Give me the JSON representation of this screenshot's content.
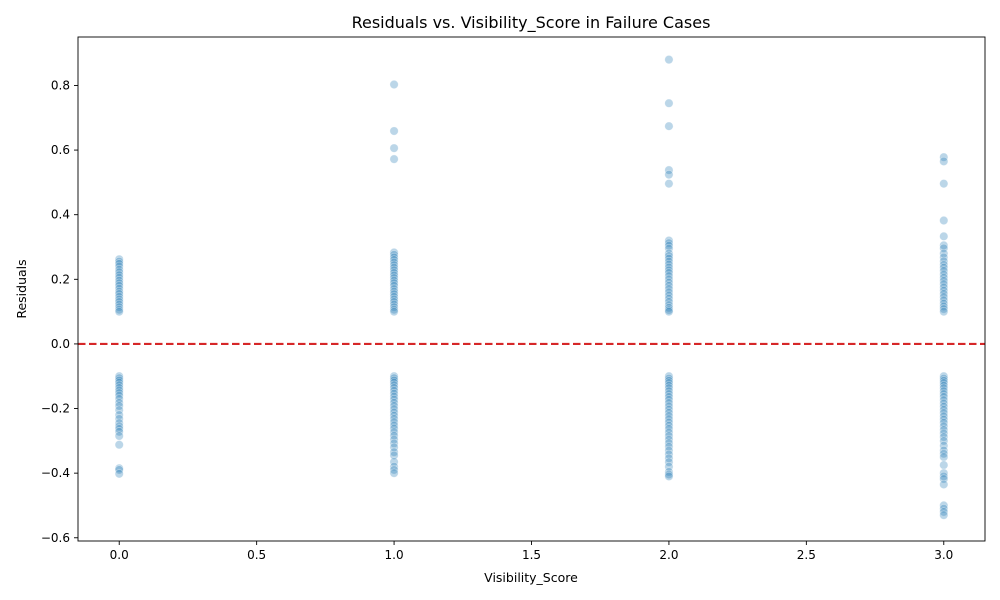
{
  "chart_data": {
    "type": "scatter",
    "title": "Residuals vs. Visibility_Score in Failure Cases",
    "xlabel": "Visibility_Score",
    "ylabel": "Residuals",
    "xlim": [
      -0.15,
      3.15
    ],
    "ylim": [
      -0.61,
      0.95
    ],
    "x_ticks": [
      0.0,
      0.5,
      1.0,
      1.5,
      2.0,
      2.5,
      3.0
    ],
    "x_tick_labels": [
      "0.0",
      "0.5",
      "1.0",
      "1.5",
      "2.0",
      "2.5",
      "3.0"
    ],
    "y_ticks": [
      -0.6,
      -0.4,
      -0.2,
      0.0,
      0.2,
      0.4,
      0.6,
      0.8
    ],
    "y_tick_labels": [
      "−0.6",
      "−0.4",
      "−0.2",
      "0.0",
      "0.2",
      "0.4",
      "0.6",
      "0.8"
    ],
    "grid": false,
    "point_color": "#1f77b4",
    "point_alpha": 0.3,
    "reference_line": {
      "y": 0.0,
      "color": "#d62728",
      "style": "dashed"
    },
    "points": [
      {
        "x": 0,
        "y": 0.262
      },
      {
        "x": 0,
        "y": 0.255
      },
      {
        "x": 0,
        "y": 0.248
      },
      {
        "x": 0,
        "y": 0.24
      },
      {
        "x": 0,
        "y": 0.23
      },
      {
        "x": 0,
        "y": 0.222
      },
      {
        "x": 0,
        "y": 0.213
      },
      {
        "x": 0,
        "y": 0.205
      },
      {
        "x": 0,
        "y": 0.196
      },
      {
        "x": 0,
        "y": 0.188
      },
      {
        "x": 0,
        "y": 0.18
      },
      {
        "x": 0,
        "y": 0.171
      },
      {
        "x": 0,
        "y": 0.162
      },
      {
        "x": 0,
        "y": 0.155
      },
      {
        "x": 0,
        "y": 0.146
      },
      {
        "x": 0,
        "y": 0.138
      },
      {
        "x": 0,
        "y": 0.13
      },
      {
        "x": 0,
        "y": 0.122
      },
      {
        "x": 0,
        "y": 0.114
      },
      {
        "x": 0,
        "y": 0.106
      },
      {
        "x": 0,
        "y": 0.1
      },
      {
        "x": 0,
        "y": -0.1
      },
      {
        "x": 0,
        "y": -0.106
      },
      {
        "x": 0,
        "y": -0.113
      },
      {
        "x": 0,
        "y": -0.12
      },
      {
        "x": 0,
        "y": -0.128
      },
      {
        "x": 0,
        "y": -0.136
      },
      {
        "x": 0,
        "y": -0.144
      },
      {
        "x": 0,
        "y": -0.152
      },
      {
        "x": 0,
        "y": -0.16
      },
      {
        "x": 0,
        "y": -0.17
      },
      {
        "x": 0,
        "y": -0.182
      },
      {
        "x": 0,
        "y": -0.192
      },
      {
        "x": 0,
        "y": -0.205
      },
      {
        "x": 0,
        "y": -0.22
      },
      {
        "x": 0,
        "y": -0.232
      },
      {
        "x": 0,
        "y": -0.245
      },
      {
        "x": 0,
        "y": -0.255
      },
      {
        "x": 0,
        "y": -0.263
      },
      {
        "x": 0,
        "y": -0.272
      },
      {
        "x": 0,
        "y": -0.285
      },
      {
        "x": 0,
        "y": -0.312
      },
      {
        "x": 0,
        "y": -0.385
      },
      {
        "x": 0,
        "y": -0.39
      },
      {
        "x": 0,
        "y": -0.402
      },
      {
        "x": 1,
        "y": 0.803
      },
      {
        "x": 1,
        "y": 0.659
      },
      {
        "x": 1,
        "y": 0.606
      },
      {
        "x": 1,
        "y": 0.572
      },
      {
        "x": 1,
        "y": 0.283
      },
      {
        "x": 1,
        "y": 0.276
      },
      {
        "x": 1,
        "y": 0.268
      },
      {
        "x": 1,
        "y": 0.26
      },
      {
        "x": 1,
        "y": 0.252
      },
      {
        "x": 1,
        "y": 0.244
      },
      {
        "x": 1,
        "y": 0.236
      },
      {
        "x": 1,
        "y": 0.228
      },
      {
        "x": 1,
        "y": 0.22
      },
      {
        "x": 1,
        "y": 0.212
      },
      {
        "x": 1,
        "y": 0.204
      },
      {
        "x": 1,
        "y": 0.196
      },
      {
        "x": 1,
        "y": 0.188
      },
      {
        "x": 1,
        "y": 0.18
      },
      {
        "x": 1,
        "y": 0.17
      },
      {
        "x": 1,
        "y": 0.162
      },
      {
        "x": 1,
        "y": 0.154
      },
      {
        "x": 1,
        "y": 0.146
      },
      {
        "x": 1,
        "y": 0.138
      },
      {
        "x": 1,
        "y": 0.13
      },
      {
        "x": 1,
        "y": 0.122
      },
      {
        "x": 1,
        "y": 0.114
      },
      {
        "x": 1,
        "y": 0.106
      },
      {
        "x": 1,
        "y": 0.1
      },
      {
        "x": 1,
        "y": -0.1
      },
      {
        "x": 1,
        "y": -0.106
      },
      {
        "x": 1,
        "y": -0.113
      },
      {
        "x": 1,
        "y": -0.12
      },
      {
        "x": 1,
        "y": -0.128
      },
      {
        "x": 1,
        "y": -0.136
      },
      {
        "x": 1,
        "y": -0.145
      },
      {
        "x": 1,
        "y": -0.154
      },
      {
        "x": 1,
        "y": -0.163
      },
      {
        "x": 1,
        "y": -0.172
      },
      {
        "x": 1,
        "y": -0.182
      },
      {
        "x": 1,
        "y": -0.192
      },
      {
        "x": 1,
        "y": -0.202
      },
      {
        "x": 1,
        "y": -0.212
      },
      {
        "x": 1,
        "y": -0.222
      },
      {
        "x": 1,
        "y": -0.232
      },
      {
        "x": 1,
        "y": -0.242
      },
      {
        "x": 1,
        "y": -0.252
      },
      {
        "x": 1,
        "y": -0.262
      },
      {
        "x": 1,
        "y": -0.273
      },
      {
        "x": 1,
        "y": -0.284
      },
      {
        "x": 1,
        "y": -0.296
      },
      {
        "x": 1,
        "y": -0.308
      },
      {
        "x": 1,
        "y": -0.32
      },
      {
        "x": 1,
        "y": -0.335
      },
      {
        "x": 1,
        "y": -0.345
      },
      {
        "x": 1,
        "y": -0.365
      },
      {
        "x": 1,
        "y": -0.38
      },
      {
        "x": 1,
        "y": -0.39
      },
      {
        "x": 1,
        "y": -0.4
      },
      {
        "x": 2,
        "y": 0.88
      },
      {
        "x": 2,
        "y": 0.745
      },
      {
        "x": 2,
        "y": 0.674
      },
      {
        "x": 2,
        "y": 0.538
      },
      {
        "x": 2,
        "y": 0.524
      },
      {
        "x": 2,
        "y": 0.496
      },
      {
        "x": 2,
        "y": 0.32
      },
      {
        "x": 2,
        "y": 0.312
      },
      {
        "x": 2,
        "y": 0.304
      },
      {
        "x": 2,
        "y": 0.295
      },
      {
        "x": 2,
        "y": 0.28
      },
      {
        "x": 2,
        "y": 0.272
      },
      {
        "x": 2,
        "y": 0.264
      },
      {
        "x": 2,
        "y": 0.255
      },
      {
        "x": 2,
        "y": 0.246
      },
      {
        "x": 2,
        "y": 0.237
      },
      {
        "x": 2,
        "y": 0.228
      },
      {
        "x": 2,
        "y": 0.22
      },
      {
        "x": 2,
        "y": 0.21
      },
      {
        "x": 2,
        "y": 0.2
      },
      {
        "x": 2,
        "y": 0.19
      },
      {
        "x": 2,
        "y": 0.18
      },
      {
        "x": 2,
        "y": 0.17
      },
      {
        "x": 2,
        "y": 0.16
      },
      {
        "x": 2,
        "y": 0.15
      },
      {
        "x": 2,
        "y": 0.14
      },
      {
        "x": 2,
        "y": 0.13
      },
      {
        "x": 2,
        "y": 0.12
      },
      {
        "x": 2,
        "y": 0.112
      },
      {
        "x": 2,
        "y": 0.105
      },
      {
        "x": 2,
        "y": 0.1
      },
      {
        "x": 2,
        "y": -0.1
      },
      {
        "x": 2,
        "y": -0.107
      },
      {
        "x": 2,
        "y": -0.114
      },
      {
        "x": 2,
        "y": -0.121
      },
      {
        "x": 2,
        "y": -0.129
      },
      {
        "x": 2,
        "y": -0.137
      },
      {
        "x": 2,
        "y": -0.146
      },
      {
        "x": 2,
        "y": -0.155
      },
      {
        "x": 2,
        "y": -0.164
      },
      {
        "x": 2,
        "y": -0.173
      },
      {
        "x": 2,
        "y": -0.183
      },
      {
        "x": 2,
        "y": -0.193
      },
      {
        "x": 2,
        "y": -0.203
      },
      {
        "x": 2,
        "y": -0.213
      },
      {
        "x": 2,
        "y": -0.223
      },
      {
        "x": 2,
        "y": -0.233
      },
      {
        "x": 2,
        "y": -0.243
      },
      {
        "x": 2,
        "y": -0.253
      },
      {
        "x": 2,
        "y": -0.263
      },
      {
        "x": 2,
        "y": -0.274
      },
      {
        "x": 2,
        "y": -0.285
      },
      {
        "x": 2,
        "y": -0.296
      },
      {
        "x": 2,
        "y": -0.307
      },
      {
        "x": 2,
        "y": -0.318
      },
      {
        "x": 2,
        "y": -0.33
      },
      {
        "x": 2,
        "y": -0.342
      },
      {
        "x": 2,
        "y": -0.354
      },
      {
        "x": 2,
        "y": -0.366
      },
      {
        "x": 2,
        "y": -0.38
      },
      {
        "x": 2,
        "y": -0.396
      },
      {
        "x": 2,
        "y": -0.404
      },
      {
        "x": 2,
        "y": -0.41
      },
      {
        "x": 3,
        "y": 0.578
      },
      {
        "x": 3,
        "y": 0.565
      },
      {
        "x": 3,
        "y": 0.496
      },
      {
        "x": 3,
        "y": 0.382
      },
      {
        "x": 3,
        "y": 0.333
      },
      {
        "x": 3,
        "y": 0.305
      },
      {
        "x": 3,
        "y": 0.296
      },
      {
        "x": 3,
        "y": 0.28
      },
      {
        "x": 3,
        "y": 0.268
      },
      {
        "x": 3,
        "y": 0.256
      },
      {
        "x": 3,
        "y": 0.245
      },
      {
        "x": 3,
        "y": 0.236
      },
      {
        "x": 3,
        "y": 0.226
      },
      {
        "x": 3,
        "y": 0.215
      },
      {
        "x": 3,
        "y": 0.205
      },
      {
        "x": 3,
        "y": 0.195
      },
      {
        "x": 3,
        "y": 0.185
      },
      {
        "x": 3,
        "y": 0.175
      },
      {
        "x": 3,
        "y": 0.165
      },
      {
        "x": 3,
        "y": 0.155
      },
      {
        "x": 3,
        "y": 0.145
      },
      {
        "x": 3,
        "y": 0.135
      },
      {
        "x": 3,
        "y": 0.125
      },
      {
        "x": 3,
        "y": 0.116
      },
      {
        "x": 3,
        "y": 0.108
      },
      {
        "x": 3,
        "y": 0.1
      },
      {
        "x": 3,
        "y": -0.1
      },
      {
        "x": 3,
        "y": -0.107
      },
      {
        "x": 3,
        "y": -0.114
      },
      {
        "x": 3,
        "y": -0.121
      },
      {
        "x": 3,
        "y": -0.129
      },
      {
        "x": 3,
        "y": -0.137
      },
      {
        "x": 3,
        "y": -0.146
      },
      {
        "x": 3,
        "y": -0.155
      },
      {
        "x": 3,
        "y": -0.164
      },
      {
        "x": 3,
        "y": -0.174
      },
      {
        "x": 3,
        "y": -0.184
      },
      {
        "x": 3,
        "y": -0.194
      },
      {
        "x": 3,
        "y": -0.204
      },
      {
        "x": 3,
        "y": -0.214
      },
      {
        "x": 3,
        "y": -0.224
      },
      {
        "x": 3,
        "y": -0.234
      },
      {
        "x": 3,
        "y": -0.244
      },
      {
        "x": 3,
        "y": -0.255
      },
      {
        "x": 3,
        "y": -0.266
      },
      {
        "x": 3,
        "y": -0.277
      },
      {
        "x": 3,
        "y": -0.288
      },
      {
        "x": 3,
        "y": -0.3
      },
      {
        "x": 3,
        "y": -0.315
      },
      {
        "x": 3,
        "y": -0.33
      },
      {
        "x": 3,
        "y": -0.34
      },
      {
        "x": 3,
        "y": -0.35
      },
      {
        "x": 3,
        "y": -0.375
      },
      {
        "x": 3,
        "y": -0.4
      },
      {
        "x": 3,
        "y": -0.41
      },
      {
        "x": 3,
        "y": -0.418
      },
      {
        "x": 3,
        "y": -0.435
      },
      {
        "x": 3,
        "y": -0.5
      },
      {
        "x": 3,
        "y": -0.51
      },
      {
        "x": 3,
        "y": -0.52
      },
      {
        "x": 3,
        "y": -0.53
      }
    ]
  }
}
